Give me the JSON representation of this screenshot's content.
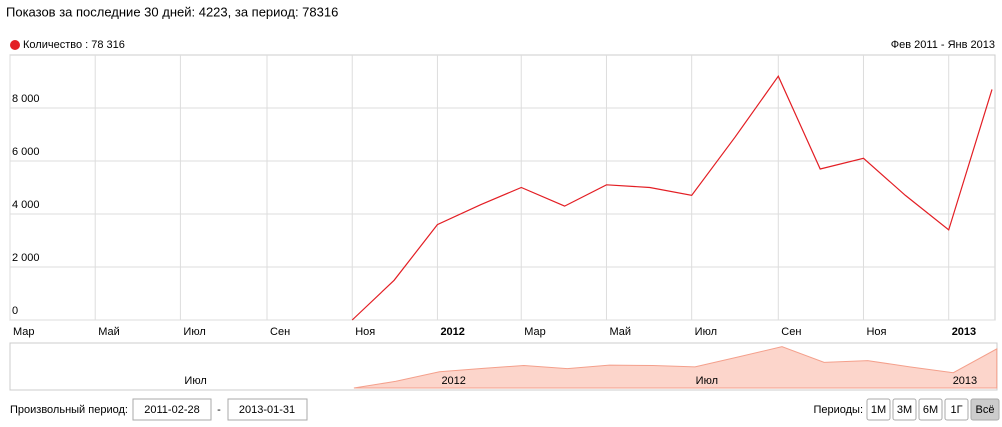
{
  "header": "Показов за последние 30 дней: 4223, за период: 78316",
  "chart_data": {
    "type": "line",
    "subtitle": "Фев 2011 - Янв 2013",
    "x": [
      "2011-02",
      "2011-03",
      "2011-04",
      "2011-05",
      "2011-06",
      "2011-07",
      "2011-08",
      "2011-09",
      "2011-10",
      "2011-11",
      "2011-12",
      "2012-01",
      "2012-02",
      "2012-03",
      "2012-04",
      "2012-05",
      "2012-06",
      "2012-07",
      "2012-08",
      "2012-09",
      "2012-10",
      "2012-11",
      "2012-12",
      "2013-01"
    ],
    "series": [
      {
        "name": "Количество : 78 316",
        "color": "#e31e24",
        "values": [
          null,
          null,
          null,
          null,
          null,
          null,
          null,
          null,
          0,
          1500,
          3600,
          4350,
          5000,
          4300,
          5100,
          5000,
          4700,
          6900,
          9200,
          5700,
          6100,
          4700,
          3400,
          8700
        ]
      }
    ],
    "ylim": [
      0,
      10000
    ],
    "yticks": [
      0,
      {
        "value": 2000,
        "label": "2 000"
      },
      {
        "value": 4000,
        "label": "4 000"
      },
      {
        "value": 6000,
        "label": "6 000"
      },
      {
        "value": 8000,
        "label": "8 000"
      }
    ],
    "xticks": [
      {
        "value": "2011-03",
        "label": "Мар"
      },
      {
        "value": "2011-05",
        "label": "Май"
      },
      {
        "value": "2011-07",
        "label": "Июл"
      },
      {
        "value": "2011-09",
        "label": "Сен"
      },
      {
        "value": "2011-11",
        "label": "Ноя"
      },
      {
        "value": "2012-01",
        "label": "2012"
      },
      {
        "value": "2012-03",
        "label": "Мар"
      },
      {
        "value": "2012-05",
        "label": "Май"
      },
      {
        "value": "2012-07",
        "label": "Июл"
      },
      {
        "value": "2012-09",
        "label": "Сен"
      },
      {
        "value": "2012-11",
        "label": "Ноя"
      },
      {
        "value": "2013-01",
        "label": "2013"
      }
    ],
    "navigator_ticks": [
      {
        "value": "2011-07",
        "label": "Июл"
      },
      {
        "value": "2012-01",
        "label": "2012"
      },
      {
        "value": "2012-07",
        "label": "Июл"
      },
      {
        "value": "2013-01",
        "label": "2013"
      }
    ],
    "grid": true
  },
  "controls": {
    "custom_period": "Произвольный период:",
    "from": "2011-02-28",
    "dash": "-",
    "to": "2013-01-31",
    "periods_label": "Периоды:",
    "periods": [
      "1М",
      "3М",
      "6М",
      "1Г",
      "Всё"
    ]
  }
}
